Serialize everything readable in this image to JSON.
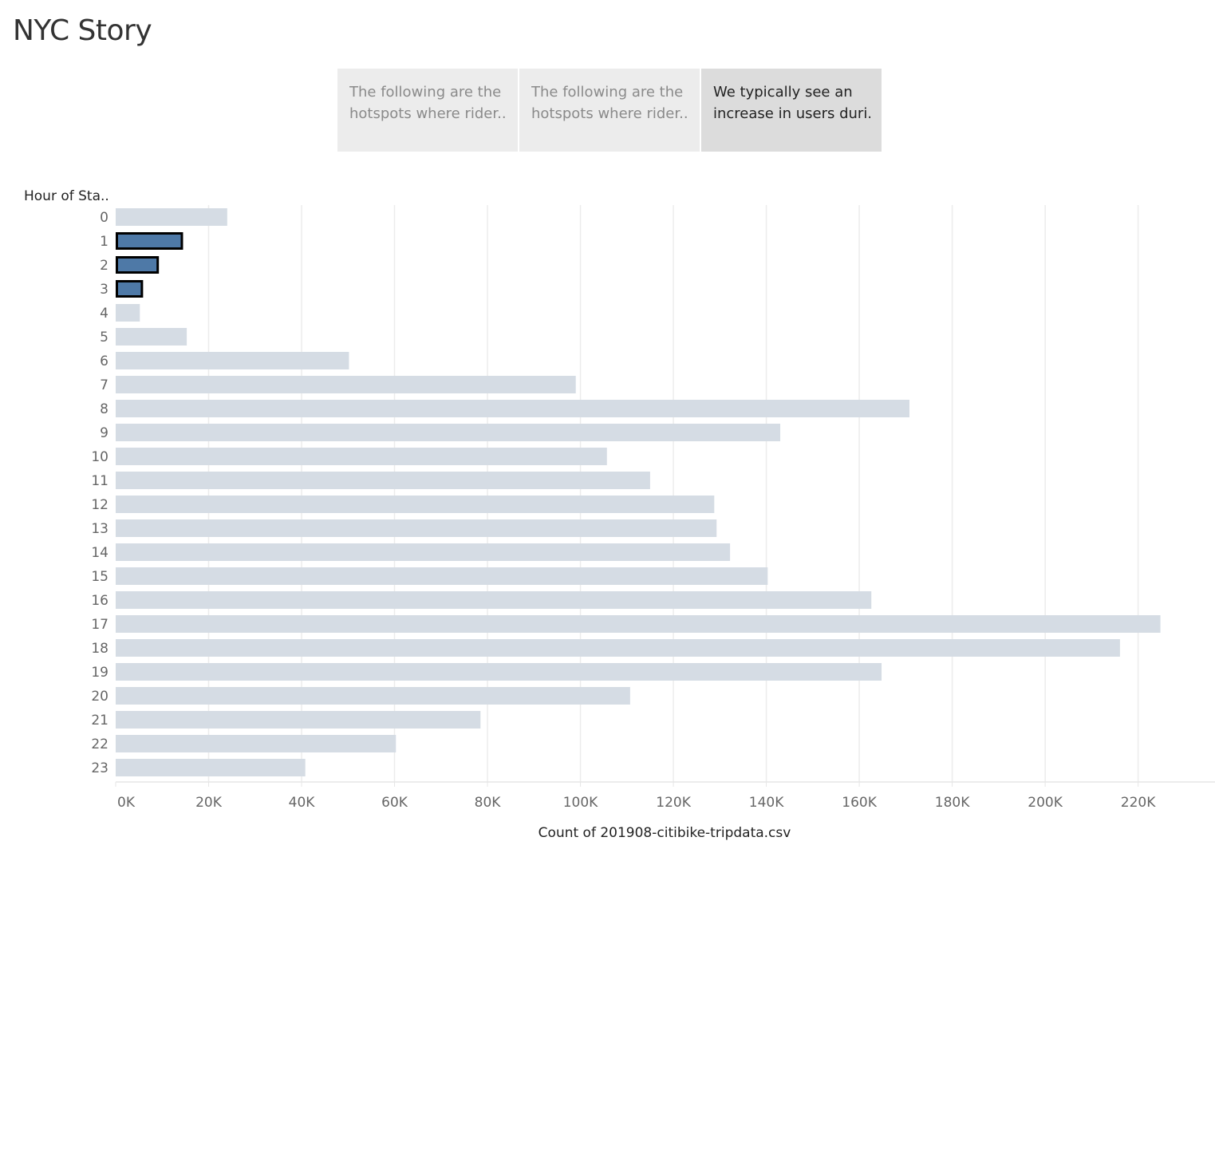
{
  "story": {
    "title": "NYC Story",
    "points": [
      {
        "line1": "The following are the",
        "line2": "hotspots where rider..",
        "active": false
      },
      {
        "line1": "The following are the",
        "line2": "hotspots where rider..",
        "active": false
      },
      {
        "line1": "We typically see an",
        "line2": "increase in users duri..",
        "active": true
      }
    ]
  },
  "chart_data": {
    "type": "bar",
    "orientation": "horizontal",
    "title": "",
    "xlabel": "Count of 201908-citibike-tripdata.csv",
    "ylabel": "Hour of Sta..",
    "categories": [
      "0",
      "1",
      "2",
      "3",
      "4",
      "5",
      "6",
      "7",
      "8",
      "9",
      "10",
      "11",
      "12",
      "13",
      "14",
      "15",
      "16",
      "17",
      "18",
      "19",
      "20",
      "21",
      "22",
      "23"
    ],
    "values": [
      24000,
      14500,
      9300,
      5900,
      5200,
      15300,
      50200,
      99000,
      170800,
      143000,
      105700,
      115000,
      128800,
      129300,
      132200,
      140300,
      162600,
      224800,
      216100,
      164800,
      110700,
      78500,
      60300,
      40800
    ],
    "highlighted": [
      "1",
      "2",
      "3"
    ],
    "xlim": [
      0,
      235000
    ],
    "xticks": [
      0,
      20000,
      40000,
      60000,
      80000,
      100000,
      120000,
      140000,
      160000,
      180000,
      200000,
      220000
    ],
    "xtick_labels": [
      "0K",
      "20K",
      "40K",
      "60K",
      "80K",
      "100K",
      "120K",
      "140K",
      "160K",
      "180K",
      "200K",
      "220K"
    ],
    "grid": true,
    "colors": {
      "bar": "#d5dce4",
      "highlight": "#4e79a7",
      "highlight_border": "#000000",
      "grid": "#ececec"
    }
  }
}
